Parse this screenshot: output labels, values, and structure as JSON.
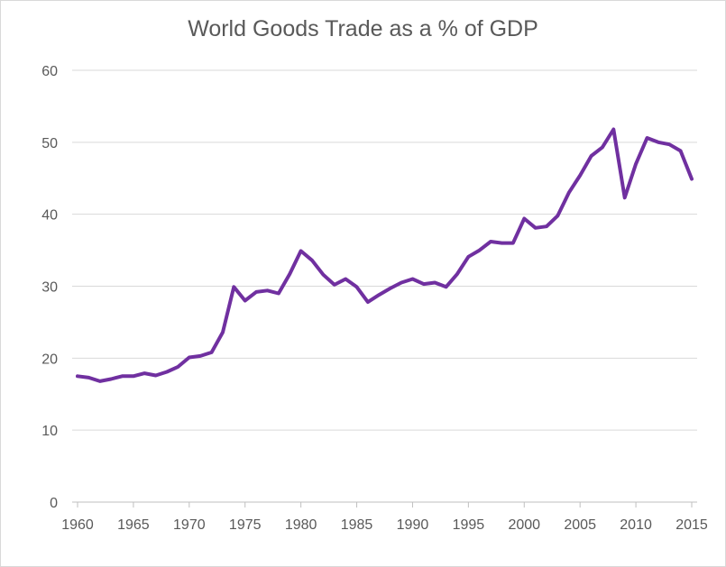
{
  "chart_data": {
    "type": "line",
    "title": "World Goods Trade as a % of GDP",
    "xlabel": "",
    "ylabel": "",
    "ylim": [
      0,
      60
    ],
    "xlim": [
      1960,
      2015
    ],
    "grid": true,
    "legend": "none",
    "y_ticks": [
      "0",
      "10",
      "20",
      "30",
      "40",
      "50",
      "60"
    ],
    "x_ticks": [
      "1960",
      "1965",
      "1970",
      "1975",
      "1980",
      "1985",
      "1990",
      "1995",
      "2000",
      "2005",
      "2010",
      "2015"
    ],
    "colors": {
      "line": "#7030a0",
      "grid": "#d9d9d9",
      "text": "#595959"
    },
    "series": [
      {
        "x": [
          1960,
          1961,
          1962,
          1963,
          1964,
          1965,
          1966,
          1967,
          1968,
          1969,
          1970,
          1971,
          1972,
          1973,
          1974,
          1975,
          1976,
          1977,
          1978,
          1979,
          1980,
          1981,
          1982,
          1983,
          1984,
          1985,
          1986,
          1987,
          1988,
          1989,
          1990,
          1991,
          1992,
          1993,
          1994,
          1995,
          1996,
          1997,
          1998,
          1999,
          2000,
          2001,
          2002,
          2003,
          2004,
          2005,
          2006,
          2007,
          2008,
          2009,
          2010,
          2011,
          2012,
          2013,
          2014,
          2015
        ],
        "values": [
          17.5,
          17.3,
          16.8,
          17.1,
          17.5,
          17.5,
          17.9,
          17.6,
          18.1,
          18.8,
          20.1,
          20.3,
          20.8,
          23.6,
          29.9,
          28.0,
          29.2,
          29.4,
          29.0,
          31.7,
          34.9,
          33.6,
          31.6,
          30.2,
          31.0,
          29.9,
          27.8,
          28.8,
          29.7,
          30.5,
          31.0,
          30.3,
          30.5,
          29.9,
          31.7,
          34.1,
          35.0,
          36.2,
          36.0,
          36.0,
          39.4,
          38.1,
          38.3,
          39.8,
          43.0,
          45.4,
          48.1,
          49.3,
          51.8,
          42.3,
          47.0,
          50.6,
          50.0,
          49.7,
          48.8,
          44.9
        ]
      }
    ]
  }
}
